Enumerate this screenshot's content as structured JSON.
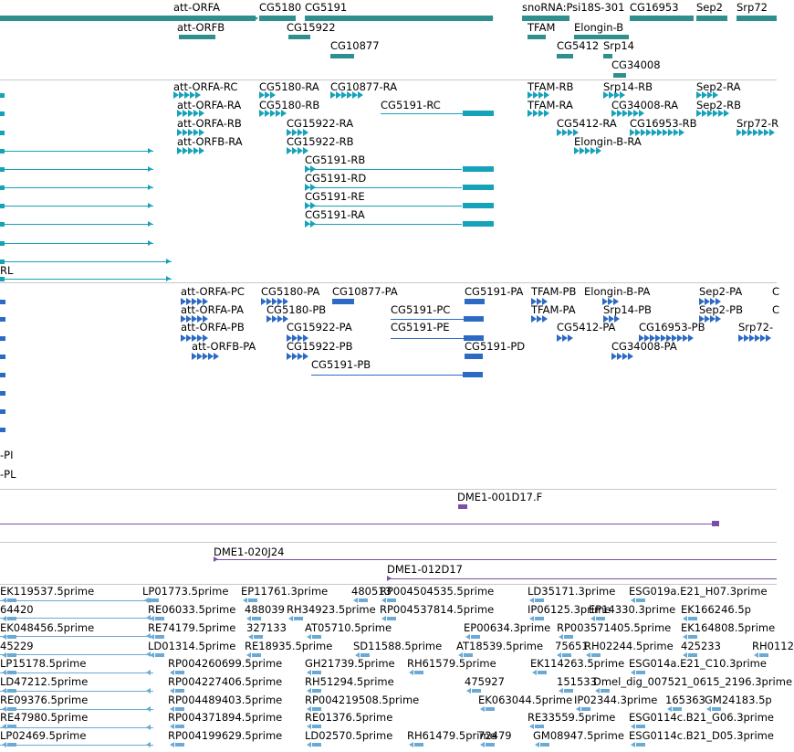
{
  "colors": {
    "gene": "#2f8f8f",
    "transcript_rna": "#16a2b8",
    "transcript_protein": "#2c6ac4",
    "clone": "#7a4fa8",
    "est": "#6aaad4",
    "divider": "#c8c8c8"
  },
  "tracks": {
    "genes": {
      "labels": [
        "att-ORFA",
        "att-ORFB",
        "CG5180",
        "CG5191",
        "CG15922",
        "CG10877",
        "snoRNA:Psi18S-301",
        "CG16953",
        "Sep2",
        "Srp72",
        "TFAM",
        "Elongin-B",
        "CG5412",
        "Srp14",
        "CG34008"
      ]
    },
    "rna_transcripts": {
      "labels": [
        "att-ORFA-RC",
        "CG5180-RA",
        "CG10877-RA",
        "att-ORFA-RA",
        "CG5180-RB",
        "CG5191-RC",
        "att-ORFA-RB",
        "CG15922-RA",
        "att-ORFB-RA",
        "CG15922-RB",
        "CG5191-RB",
        "CG5191-RD",
        "CG5191-RE",
        "CG5191-RA",
        "RL",
        "TFAM-RB",
        "Srp14-RB",
        "Sep2-RA",
        "TFAM-RA",
        "CG34008-RA",
        "Sep2-RB",
        "CG5412-RA",
        "CG16953-RB",
        "Srp72-R",
        "Elongin-B-RA"
      ]
    },
    "protein_transcripts": {
      "labels": [
        "att-ORFA-PC",
        "CG5180-PA",
        "CG10877-PA",
        "CG5191-PA",
        "TFAM-PB",
        "Elongin-B-PA",
        "Sep2-PA",
        "att-ORFA-PA",
        "CG5180-PB",
        "CG5191-PC",
        "TFAM-PA",
        "Srp14-PB",
        "Sep2-PB",
        "att-ORFA-PB",
        "CG15922-PA",
        "CG5191-PE",
        "CG5412-PA",
        "CG16953-PB",
        "Srp72-",
        "att-ORFB-PA",
        "CG15922-PB",
        "CG5191-PD",
        "CG34008-PA",
        "CG5191-PB",
        "-PI",
        "-PL",
        "C",
        "C"
      ]
    },
    "clones": {
      "labels": [
        "DME1-001D17.F",
        "DME1-020J24",
        "DME1-012D17"
      ]
    },
    "ests": {
      "labels": [
        "EK119537.5prime",
        "LP01773.5prime",
        "EP11761.3prime",
        "480513",
        "RP004504535.5prime",
        "LD35171.3prime",
        "ESG019a.E21_H07.3prime",
        "64420",
        "RE06033.5prime",
        "488039",
        "RH34923.5prime",
        "RP004537814.5prime",
        "IP06125.3prime",
        "EP14330.3prime",
        "EK166246.5p",
        "EK048456.5prime",
        "RE74179.5prime",
        "327133",
        "AT05710.5prime",
        "EP00634.3prime",
        "RP003571405.5prime",
        "EK164808.5prime",
        "45229",
        "LD01314.5prime",
        "RE18935.5prime",
        "SD11588.5prime",
        "AT18539.5prime",
        "75651",
        "RH02244.5prime",
        "425233",
        "RH0112",
        "LP15178.5prime",
        "RP004260699.5prime",
        "GH21739.5prime",
        "RH61579.5prime",
        "EK114263.5prime",
        "ESG014a.E21_C10.3prime",
        "LD47212.5prime",
        "RP004227406.5prime",
        "RH51294.5prime",
        "475927",
        "151533",
        "Dmel_dig_007521_0615_2196.3prime",
        "RE09376.5prime",
        "RP004489403.5prime",
        "RP004219508.5prime",
        "EK063044.5prime",
        "IP02344.3prime",
        "165363",
        "GM24183.5p",
        "RE47980.5prime",
        "RP004371894.5prime",
        "RE01376.5prime",
        "RE33559.5prime",
        "ESG0114c.B21_G06.3prime",
        "LP02469.5prime",
        "RP004199629.5prime",
        "LD02570.5prime",
        "RH61479.5prime",
        "72479",
        "GM08947.5prime",
        "ESG0114c.B21_D05.3prime"
      ]
    }
  }
}
